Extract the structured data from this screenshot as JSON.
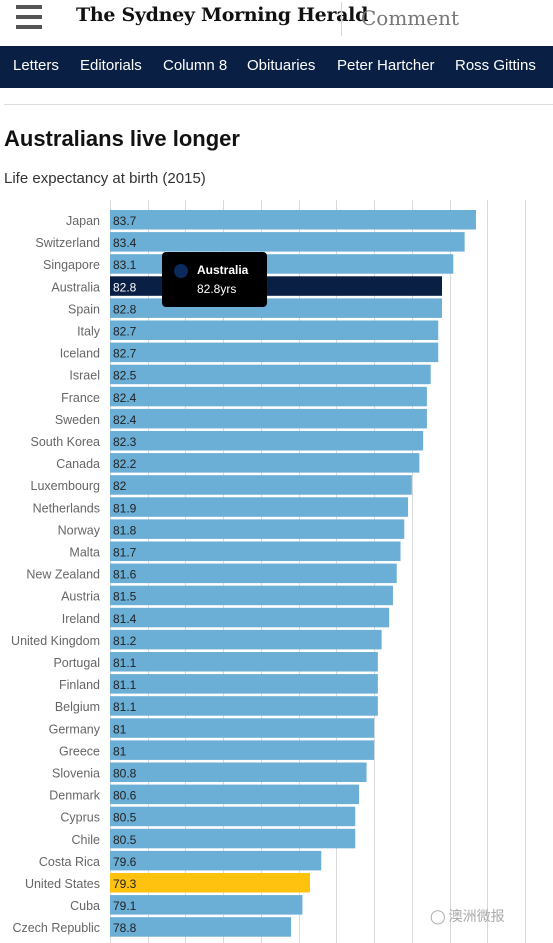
{
  "header": {
    "masthead": "The Sydney Morning Herald",
    "section": "Comment"
  },
  "nav": [
    "Letters",
    "Editorials",
    "Column 8",
    "Obituaries",
    "Peter Hartcher",
    "Ross Gittins"
  ],
  "chart_data": {
    "type": "bar",
    "orientation": "horizontal",
    "title": "Australians live longer",
    "subtitle": "Life expectancy at birth (2015)",
    "categories": [
      "Japan",
      "Switzerland",
      "Singapore",
      "Australia",
      "Spain",
      "Italy",
      "Iceland",
      "Israel",
      "France",
      "Sweden",
      "South Korea",
      "Canada",
      "Luxembourg",
      "Netherlands",
      "Norway",
      "Malta",
      "New Zealand",
      "Austria",
      "Ireland",
      "United Kingdom",
      "Portugal",
      "Finland",
      "Belgium",
      "Germany",
      "Greece",
      "Slovenia",
      "Denmark",
      "Cyprus",
      "Chile",
      "Costa Rica",
      "United States",
      "Cuba",
      "Czech Republic"
    ],
    "values": [
      83.7,
      83.4,
      83.1,
      82.8,
      82.8,
      82.7,
      82.7,
      82.5,
      82.4,
      82.4,
      82.3,
      82.2,
      82,
      81.9,
      81.8,
      81.7,
      81.6,
      81.5,
      81.4,
      81.2,
      81.1,
      81.1,
      81.1,
      81,
      81,
      80.8,
      80.6,
      80.5,
      80.5,
      79.6,
      79.3,
      79.1,
      78.8
    ],
    "value_labels": [
      "83.7",
      "83.4",
      "83.1",
      "82.8",
      "82.8",
      "82.7",
      "82.7",
      "82.5",
      "82.4",
      "82.4",
      "82.3",
      "82.2",
      "82",
      "81.9",
      "81.8",
      "81.7",
      "81.6",
      "81.5",
      "81.4",
      "81.2",
      "81.1",
      "81.1",
      "81.1",
      "81",
      "81",
      "80.8",
      "80.6",
      "80.5",
      "80.5",
      "79.6",
      "79.3",
      "79.1",
      "78.8"
    ],
    "xlim": [
      74,
      85
    ],
    "grid": true,
    "colors": {
      "default": "#6baed6",
      "highlight_selected": "#0a1f44",
      "highlight_us": "#ffc20e",
      "grid": "#d9d9d9"
    },
    "highlighted": {
      "Australia": "highlight_selected",
      "United States": "highlight_us"
    },
    "tooltip": {
      "name": "Australia",
      "value": "82.8yrs"
    }
  },
  "watermark": "澳洲微报"
}
